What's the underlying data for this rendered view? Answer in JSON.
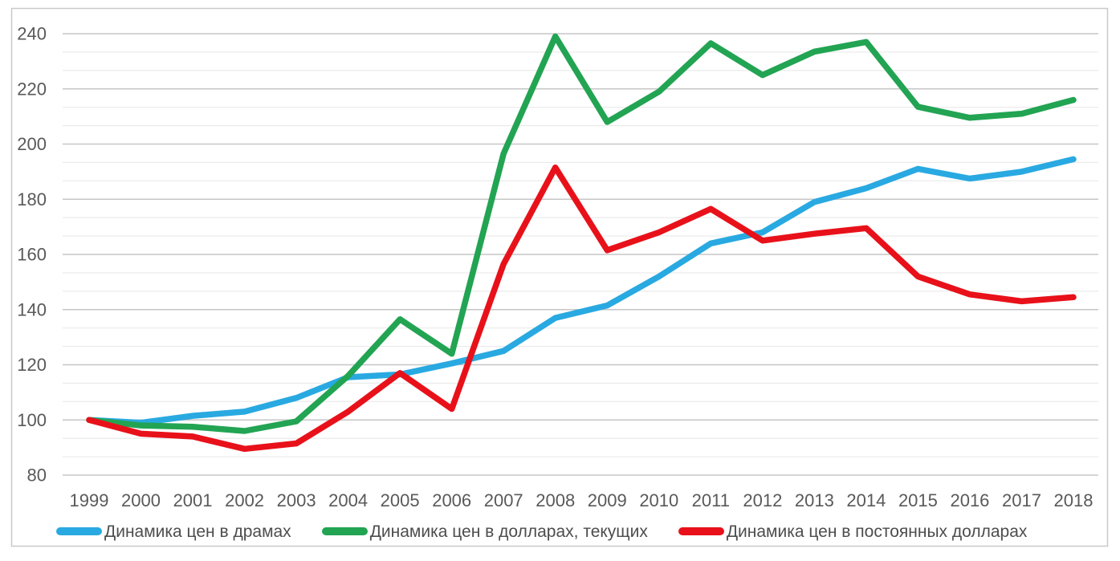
{
  "chart_data": {
    "type": "line",
    "x": [
      1999,
      2000,
      2001,
      2002,
      2003,
      2004,
      2005,
      2006,
      2007,
      2008,
      2009,
      2010,
      2011,
      2012,
      2013,
      2014,
      2015,
      2016,
      2017,
      2018
    ],
    "series": [
      {
        "name": "Динамика цен в драмах",
        "color": "#29A9E1",
        "values": [
          100,
          99,
          101.5,
          103,
          108,
          115.5,
          116.5,
          120.5,
          125,
          137,
          141.5,
          152,
          164,
          168,
          179,
          184,
          191,
          187.5,
          190,
          194.5
        ]
      },
      {
        "name": "Динамика цен в долларах, текущих",
        "color": "#22A453",
        "values": [
          100,
          98,
          97.5,
          96,
          99.5,
          116,
          136.5,
          124,
          196.5,
          239,
          208,
          219,
          236.5,
          225,
          233.5,
          237,
          213.5,
          209.5,
          211,
          216
        ]
      },
      {
        "name": "Динамика цен в постоянных долларах",
        "color": "#E8111A",
        "values": [
          100,
          95,
          94,
          89.5,
          91.5,
          103,
          117,
          104,
          156.5,
          191.5,
          161.5,
          168,
          176.5,
          165,
          167.5,
          169.5,
          152,
          145.5,
          143,
          144.5
        ]
      }
    ],
    "title": "",
    "xlabel": "",
    "ylabel": "",
    "ylim": [
      80,
      240
    ],
    "y_major_step": 20,
    "y_minor_per_major": 3,
    "grid": true,
    "legend_position": "bottom",
    "y_axis": {
      "tick_labels": [
        "80",
        "100",
        "120",
        "140",
        "160",
        "180",
        "200",
        "220",
        "240"
      ]
    },
    "x_axis": {
      "tick_labels": [
        "1999",
        "2000",
        "2001",
        "2002",
        "2003",
        "2004",
        "2005",
        "2006",
        "2007",
        "2008",
        "2009",
        "2010",
        "2011",
        "2012",
        "2013",
        "2014",
        "2015",
        "2016",
        "2017",
        "2018"
      ]
    }
  },
  "colors": {
    "background": "#FFFFFF",
    "border": "#C9C9C9",
    "major_grid": "#C6C6C6",
    "minor_grid": "#E9E9E9",
    "axis_label": "#595959",
    "legend_text": "#4D4D4D"
  }
}
